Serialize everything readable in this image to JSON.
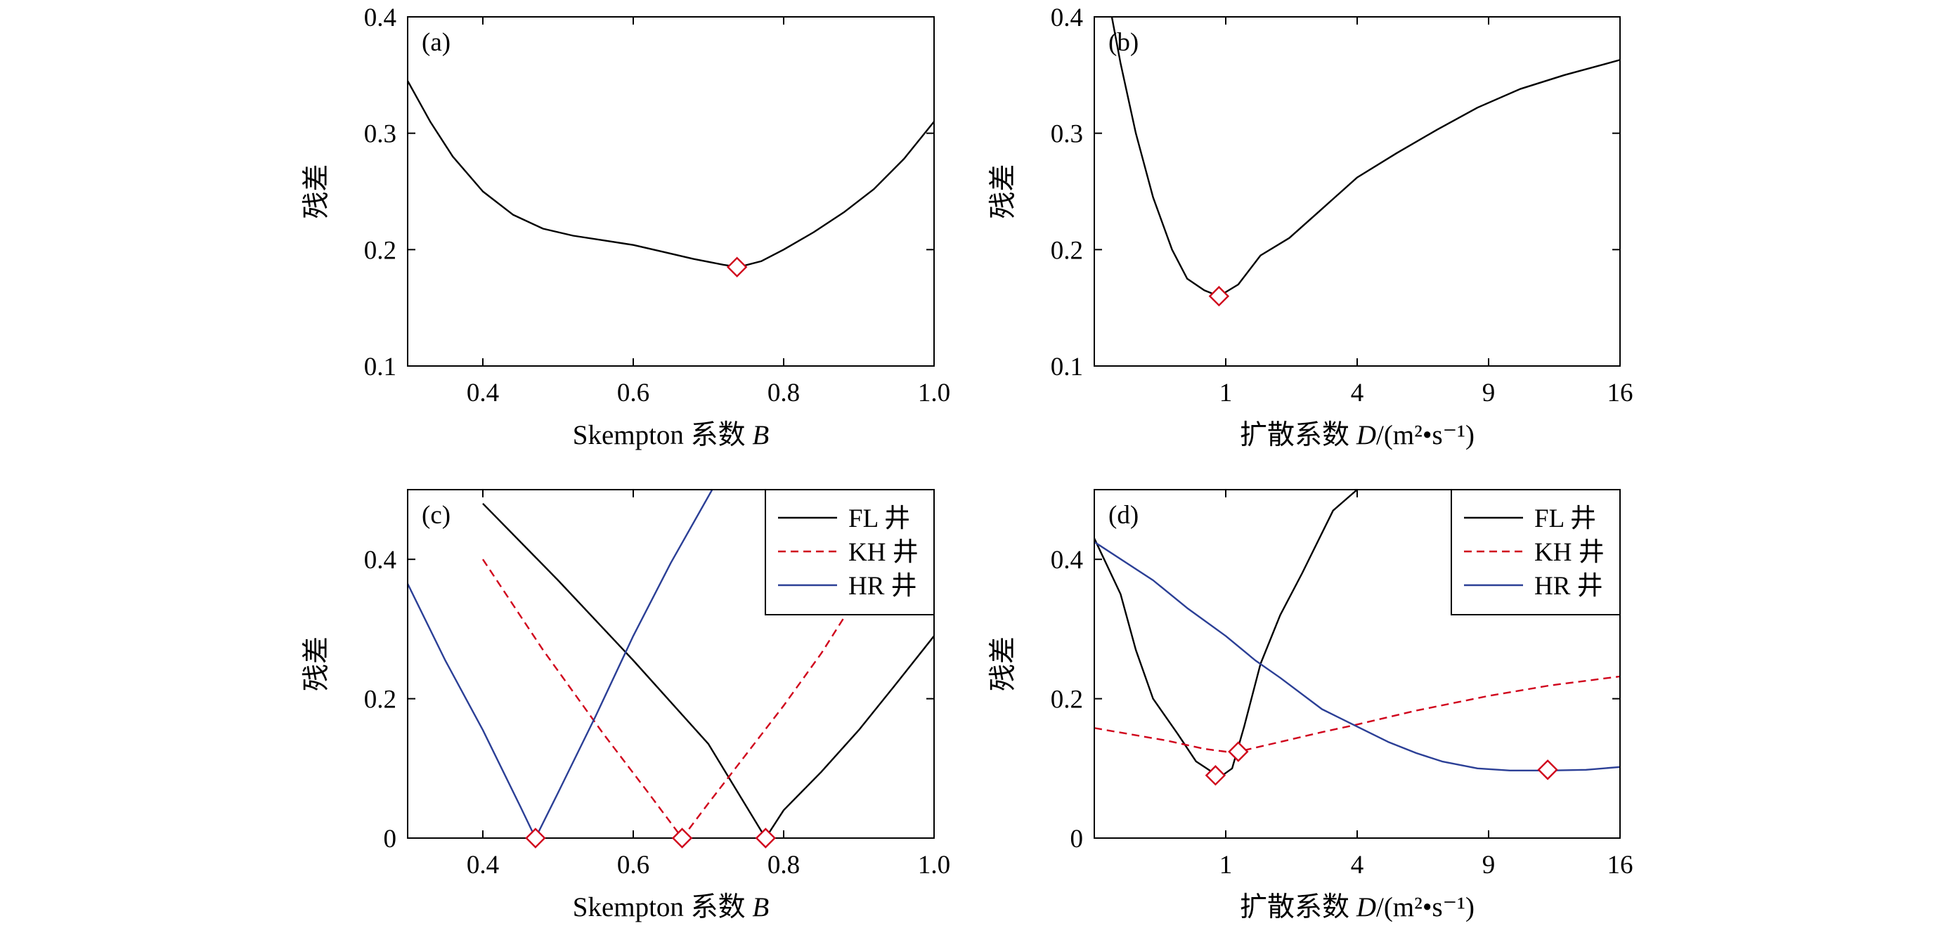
{
  "colors": {
    "FL": "#000000",
    "KH": "#d0021b",
    "HR": "#2b3f96",
    "marker": "#d0021b"
  },
  "chart_data": [
    {
      "id": "a",
      "type": "line",
      "panel_label": "(a)",
      "xlabel": "Skempton 系数 ",
      "xlabel_italic": "B",
      "ylabel": "残差",
      "xlim": [
        0.3,
        1.0
      ],
      "ylim": [
        0.1,
        0.4
      ],
      "x_scale": "linear",
      "xticks": [
        0.4,
        0.6,
        0.8,
        1.0
      ],
      "xtick_labels": [
        "0.4",
        "0.6",
        "0.8",
        "1.0"
      ],
      "yticks": [
        0.1,
        0.2,
        0.3,
        0.4
      ],
      "ytick_labels": [
        "0.1",
        "0.2",
        "0.3",
        "0.4"
      ],
      "series": [
        {
          "key": "FL",
          "dash": "solid",
          "x": [
            0.3,
            0.33,
            0.36,
            0.4,
            0.44,
            0.48,
            0.52,
            0.56,
            0.6,
            0.64,
            0.68,
            0.72,
            0.74,
            0.77,
            0.8,
            0.84,
            0.88,
            0.92,
            0.96,
            1.0
          ],
          "y": [
            0.345,
            0.31,
            0.28,
            0.25,
            0.23,
            0.218,
            0.212,
            0.208,
            0.204,
            0.198,
            0.192,
            0.187,
            0.185,
            0.19,
            0.2,
            0.215,
            0.232,
            0.252,
            0.278,
            0.31
          ]
        }
      ],
      "markers": [
        {
          "x": 0.738,
          "y": 0.185
        }
      ],
      "legend": null
    },
    {
      "id": "b",
      "type": "line",
      "panel_label": "(b)",
      "xlabel": "扩散系数 ",
      "xlabel_italic": "D",
      "xlabel_unit": "/(m²•s⁻¹)",
      "ylabel": "残差",
      "xlim": [
        0,
        16
      ],
      "ylim": [
        0.1,
        0.4
      ],
      "x_scale": "sqrt",
      "xticks": [
        1,
        4,
        9,
        16
      ],
      "xtick_labels": [
        "1",
        "4",
        "9",
        "16"
      ],
      "yticks": [
        0.1,
        0.2,
        0.3,
        0.4
      ],
      "ytick_labels": [
        "0.1",
        "0.2",
        "0.3",
        "0.4"
      ],
      "series": [
        {
          "key": "FL",
          "dash": "solid",
          "x": [
            0.01,
            0.04,
            0.1,
            0.2,
            0.35,
            0.5,
            0.7,
            0.9,
            1.2,
            1.6,
            2.2,
            2.9,
            4.0,
            5.3,
            6.8,
            8.5,
            10.5,
            12.8,
            16.0
          ],
          "y": [
            0.42,
            0.36,
            0.3,
            0.245,
            0.2,
            0.175,
            0.165,
            0.16,
            0.17,
            0.195,
            0.21,
            0.232,
            0.262,
            0.283,
            0.303,
            0.322,
            0.338,
            0.35,
            0.363
          ]
        }
      ],
      "markers": [
        {
          "x": 0.9,
          "y": 0.16
        }
      ],
      "legend": null
    },
    {
      "id": "c",
      "type": "line",
      "panel_label": "(c)",
      "xlabel": "Skempton 系数 ",
      "xlabel_italic": "B",
      "ylabel": "残差",
      "xlim": [
        0.3,
        1.0
      ],
      "ylim": [
        0.0,
        0.5
      ],
      "x_scale": "linear",
      "xticks": [
        0.4,
        0.6,
        0.8,
        1.0
      ],
      "xtick_labels": [
        "0.4",
        "0.6",
        "0.8",
        "1.0"
      ],
      "yticks": [
        0.0,
        0.2,
        0.4
      ],
      "ytick_labels": [
        "0",
        "0.2",
        "0.4"
      ],
      "series": [
        {
          "key": "FL",
          "name": "FL 井",
          "dash": "solid",
          "x": [
            0.4,
            0.5,
            0.6,
            0.7,
            0.776,
            0.8,
            0.85,
            0.9,
            0.95,
            1.0
          ],
          "y": [
            0.48,
            0.37,
            0.255,
            0.135,
            0.0,
            0.04,
            0.095,
            0.155,
            0.222,
            0.29
          ]
        },
        {
          "key": "KH",
          "name": "KH 井",
          "dash": "dashed",
          "x": [
            0.4,
            0.48,
            0.56,
            0.62,
            0.665,
            0.7,
            0.75,
            0.8,
            0.85,
            0.9
          ],
          "y": [
            0.4,
            0.27,
            0.15,
            0.065,
            0.0,
            0.05,
            0.12,
            0.19,
            0.265,
            0.35
          ]
        },
        {
          "key": "HR",
          "name": "HR 井",
          "dash": "solid",
          "x": [
            0.3,
            0.35,
            0.4,
            0.45,
            0.47,
            0.5,
            0.55,
            0.6,
            0.65,
            0.705
          ],
          "y": [
            0.365,
            0.255,
            0.155,
            0.045,
            0.0,
            0.065,
            0.175,
            0.29,
            0.395,
            0.5
          ]
        }
      ],
      "markers": [
        {
          "x": 0.47,
          "y": 0.0
        },
        {
          "x": 0.665,
          "y": 0.0
        },
        {
          "x": 0.776,
          "y": 0.0
        }
      ],
      "legend": {
        "placement": "top-right",
        "entries": [
          "FL 井",
          "KH 井",
          "HR 井"
        ]
      }
    },
    {
      "id": "d",
      "type": "line",
      "panel_label": "(d)",
      "xlabel": "扩散系数 ",
      "xlabel_italic": "D",
      "xlabel_unit": "/(m²•s⁻¹)",
      "ylabel": "残差",
      "xlim": [
        0,
        16
      ],
      "ylim": [
        0.0,
        0.5
      ],
      "x_scale": "sqrt",
      "xticks": [
        1,
        4,
        9,
        16
      ],
      "xtick_labels": [
        "1",
        "4",
        "9",
        "16"
      ],
      "yticks": [
        0.0,
        0.2,
        0.4
      ],
      "ytick_labels": [
        "0",
        "0.2",
        "0.4"
      ],
      "series": [
        {
          "key": "FL",
          "name": "FL 井",
          "dash": "solid",
          "x": [
            0.0,
            0.04,
            0.1,
            0.2,
            0.4,
            0.6,
            0.8,
            0.95,
            1.1,
            1.3,
            1.6,
            2.0,
            2.5,
            3.3,
            4.0
          ],
          "y": [
            0.43,
            0.35,
            0.27,
            0.2,
            0.15,
            0.11,
            0.095,
            0.09,
            0.1,
            0.16,
            0.25,
            0.32,
            0.38,
            0.47,
            0.5
          ]
        },
        {
          "key": "KH",
          "name": "KH 井",
          "dash": "dashed",
          "x": [
            0.0,
            0.3,
            0.7,
            1.0,
            1.2,
            2.0,
            3.0,
            4.0,
            6.0,
            9.0,
            12.0,
            16.0
          ],
          "y": [
            0.158,
            0.14,
            0.128,
            0.124,
            0.124,
            0.138,
            0.152,
            0.163,
            0.183,
            0.204,
            0.219,
            0.232
          ]
        },
        {
          "key": "HR",
          "name": "HR 井",
          "dash": "solid",
          "x": [
            0.0,
            0.2,
            0.5,
            1.0,
            1.5,
            2.0,
            3.0,
            4.0,
            5.0,
            6.0,
            7.0,
            8.5,
            10.0,
            12.0,
            14.0,
            16.0
          ],
          "y": [
            0.425,
            0.37,
            0.33,
            0.29,
            0.255,
            0.23,
            0.185,
            0.16,
            0.138,
            0.122,
            0.11,
            0.1,
            0.097,
            0.097,
            0.098,
            0.102
          ]
        }
      ],
      "markers": [
        {
          "x": 0.85,
          "y": 0.09
        },
        {
          "x": 1.2,
          "y": 0.124
        },
        {
          "x": 11.9,
          "y": 0.098
        }
      ],
      "legend": {
        "placement": "top-right",
        "entries": [
          "FL 井",
          "KH 井",
          "HR 井"
        ]
      }
    }
  ]
}
